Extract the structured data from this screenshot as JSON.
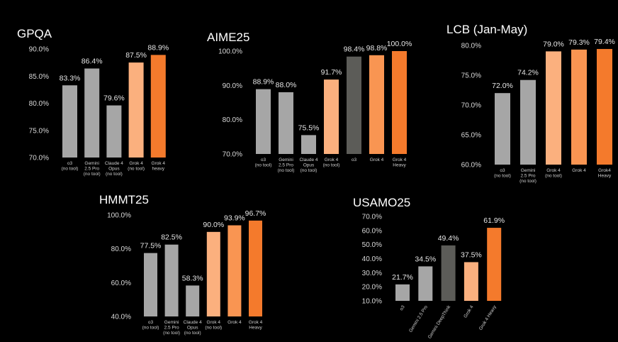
{
  "chart_data": [
    {
      "type": "bar",
      "title": "GPQA",
      "ylim": [
        70,
        90
      ],
      "yticks": [
        "90.0%",
        "85.0%",
        "80.0%",
        "75.0%",
        "70.0%"
      ],
      "categories": [
        [
          "o3",
          "(no tool)"
        ],
        [
          "Gemini",
          "2.5 Pro",
          "(no tool)"
        ],
        [
          "Claude 4",
          "Opus",
          "(no tool)"
        ],
        [
          "Grok 4",
          "(no tool)"
        ],
        [
          "Grok 4",
          "heavy"
        ]
      ],
      "values": [
        83.3,
        86.4,
        79.6,
        87.5,
        88.9
      ],
      "labels": [
        "83.3%",
        "86.4%",
        "79.6%",
        "87.5%",
        "88.9%"
      ],
      "colors": [
        "#a6a6a6",
        "#a6a6a6",
        "#a6a6a6",
        "#fbb07e",
        "#f47a2c"
      ]
    },
    {
      "type": "bar",
      "title": "AIME25",
      "ylim": [
        70,
        100
      ],
      "yticks": [
        "100.0%",
        "90.0%",
        "80.0%",
        "70.0%"
      ],
      "categories": [
        [
          "o3",
          "(no tool)"
        ],
        [
          "Gemini",
          "2.5 Pro",
          "(no tool)"
        ],
        [
          "Claude 4",
          "Opus",
          "(no tool)"
        ],
        [
          "Grok 4",
          "(no tool)"
        ],
        [
          "o3"
        ],
        [
          "Grok 4"
        ],
        [
          "Grok 4",
          "Heavy"
        ]
      ],
      "values": [
        88.9,
        88.0,
        75.5,
        91.7,
        98.4,
        98.8,
        100.0
      ],
      "labels": [
        "88.9%",
        "88.0%",
        "75.5%",
        "91.7%",
        "98.4%",
        "98.8%",
        "100.0%"
      ],
      "colors": [
        "#a6a6a6",
        "#a6a6a6",
        "#a6a6a6",
        "#fbb07e",
        "#5c5c58",
        "#f99552",
        "#f47a2c"
      ]
    },
    {
      "type": "bar",
      "title": "LCB (Jan-May)",
      "ylim": [
        60,
        80
      ],
      "yticks": [
        "80.0%",
        "75.0%",
        "70.0%",
        "65.0%",
        "60.0%"
      ],
      "categories": [
        [
          "o3",
          "(no tool)"
        ],
        [
          "Gemini",
          "2.5 Pro",
          "(no tool)"
        ],
        [
          "Grok 4",
          "(no tool)"
        ],
        [
          "Grok 4"
        ],
        [
          "Grok4",
          "Heavy"
        ]
      ],
      "values": [
        72.0,
        74.2,
        79.0,
        79.3,
        79.4
      ],
      "labels": [
        "72.0%",
        "74.2%",
        "79.0%",
        "79.3%",
        "79.4%"
      ],
      "colors": [
        "#a6a6a6",
        "#a6a6a6",
        "#fbb07e",
        "#f99552",
        "#f47a2c"
      ]
    },
    {
      "type": "bar",
      "title": "HMMT25",
      "ylim": [
        40,
        100
      ],
      "yticks": [
        "100.0%",
        "80.0%",
        "60.0%",
        "40.0%"
      ],
      "categories": [
        [
          "o3",
          "(no tool)"
        ],
        [
          "Gemini",
          "2.5 Pro",
          "(no tool)"
        ],
        [
          "Claude 4",
          "Opus",
          "(no tool)"
        ],
        [
          "Grok 4",
          "(no tool)"
        ],
        [
          "Grok 4"
        ],
        [
          "Grok 4",
          "Heavy"
        ]
      ],
      "values": [
        77.5,
        82.5,
        58.3,
        90.0,
        93.9,
        96.7
      ],
      "labels": [
        "77.5%",
        "82.5%",
        "58.3%",
        "90.0%",
        "93.9%",
        "96.7%"
      ],
      "colors": [
        "#a6a6a6",
        "#a6a6a6",
        "#a6a6a6",
        "#fbb07e",
        "#f99552",
        "#f47a2c"
      ]
    },
    {
      "type": "bar",
      "title": "USAMO25",
      "ylim": [
        10,
        70
      ],
      "yticks": [
        "70.0%",
        "60.0%",
        "50.0%",
        "40.0%",
        "30.0%",
        "20.0%",
        "10.0%"
      ],
      "rotated_categories": true,
      "categories": [
        [
          "o3"
        ],
        [
          "Gemini 2.5 Pro"
        ],
        [
          "Gemini DeepThink"
        ],
        [
          "Grok 4"
        ],
        [
          "Grok 4 Heavy"
        ]
      ],
      "values": [
        21.7,
        34.5,
        49.4,
        37.5,
        61.9
      ],
      "labels": [
        "21.7%",
        "34.5%",
        "49.4%",
        "37.5%",
        "61.9%"
      ],
      "colors": [
        "#a6a6a6",
        "#a6a6a6",
        "#5c5c58",
        "#fbb07e",
        "#f47a2c"
      ]
    }
  ]
}
